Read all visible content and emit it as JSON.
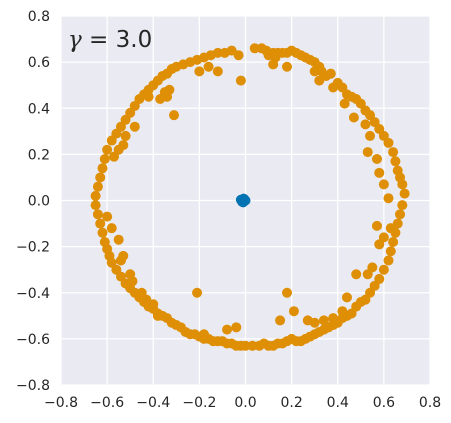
{
  "chart_data": {
    "type": "scatter",
    "title": "",
    "xlabel": "",
    "ylabel": "",
    "annotation": {
      "symbol": "γ",
      "equals": " = ",
      "value": "3.0"
    },
    "xlim": [
      -0.8,
      0.8
    ],
    "ylim": [
      -0.8,
      0.8
    ],
    "xticks": [
      "−0.8",
      "−0.6",
      "−0.4",
      "−0.2",
      "0.0",
      "0.2",
      "0.4",
      "0.6",
      "0.8"
    ],
    "yticks": [
      "0.8",
      "0.6",
      "0.4",
      "0.2",
      "0.0",
      "−0.2",
      "−0.4",
      "−0.6",
      "−0.8"
    ],
    "grid": true,
    "colors": {
      "background": "#eaeaf2",
      "grid": "#ffffff",
      "ring": "#de8f05",
      "center": "#0173b2"
    },
    "series": [
      {
        "color": "#de8f05",
        "points": [
          [
            0.04,
            0.66
          ],
          [
            0.07,
            0.66
          ],
          [
            0.09,
            0.65
          ],
          [
            0.12,
            0.64
          ],
          [
            0.14,
            0.64
          ],
          [
            0.16,
            0.64
          ],
          [
            0.18,
            0.64
          ],
          [
            0.2,
            0.65
          ],
          [
            0.22,
            0.64
          ],
          [
            0.24,
            0.63
          ],
          [
            0.1,
            0.63
          ],
          [
            0.13,
            0.62
          ],
          [
            0.26,
            0.62
          ],
          [
            0.28,
            0.61
          ],
          [
            0.3,
            0.6
          ],
          [
            0.32,
            0.58
          ],
          [
            0.33,
            0.56
          ],
          [
            0.35,
            0.54
          ],
          [
            0.37,
            0.55
          ],
          [
            0.4,
            0.51
          ],
          [
            0.42,
            0.49
          ],
          [
            0.44,
            0.46
          ],
          [
            0.46,
            0.45
          ],
          [
            0.48,
            0.44
          ],
          [
            0.5,
            0.42
          ],
          [
            0.52,
            0.39
          ],
          [
            0.54,
            0.37
          ],
          [
            0.56,
            0.34
          ],
          [
            0.58,
            0.31
          ],
          [
            0.6,
            0.28
          ],
          [
            0.62,
            0.25
          ],
          [
            0.64,
            0.21
          ],
          [
            0.65,
            0.17
          ],
          [
            0.66,
            0.13
          ],
          [
            0.67,
            0.1
          ],
          [
            0.68,
            0.07
          ],
          [
            0.69,
            0.03
          ],
          [
            0.68,
            -0.02
          ],
          [
            0.67,
            -0.06
          ],
          [
            0.66,
            -0.1
          ],
          [
            0.65,
            -0.14
          ],
          [
            0.64,
            -0.18
          ],
          [
            0.63,
            -0.22
          ],
          [
            0.62,
            -0.26
          ],
          [
            0.6,
            -0.3
          ],
          [
            0.58,
            -0.34
          ],
          [
            0.56,
            -0.37
          ],
          [
            0.54,
            -0.4
          ],
          [
            0.52,
            -0.43
          ],
          [
            0.5,
            -0.44
          ],
          [
            0.48,
            -0.46
          ],
          [
            0.46,
            -0.49
          ],
          [
            0.44,
            -0.5
          ],
          [
            0.42,
            -0.51
          ],
          [
            0.4,
            -0.53
          ],
          [
            0.38,
            -0.54
          ],
          [
            0.36,
            -0.55
          ],
          [
            0.34,
            -0.56
          ],
          [
            0.32,
            -0.57
          ],
          [
            0.3,
            -0.58
          ],
          [
            0.28,
            -0.59
          ],
          [
            0.26,
            -0.6
          ],
          [
            0.24,
            -0.61
          ],
          [
            0.22,
            -0.61
          ],
          [
            0.2,
            -0.6
          ],
          [
            0.18,
            -0.61
          ],
          [
            0.16,
            -0.62
          ],
          [
            0.14,
            -0.62
          ],
          [
            0.12,
            -0.63
          ],
          [
            0.1,
            -0.63
          ],
          [
            0.08,
            -0.62
          ],
          [
            0.06,
            -0.63
          ],
          [
            0.03,
            -0.63
          ],
          [
            0.0,
            -0.63
          ],
          [
            -0.02,
            -0.63
          ],
          [
            -0.04,
            -0.63
          ],
          [
            -0.06,
            -0.62
          ],
          [
            -0.08,
            -0.62
          ],
          [
            -0.1,
            -0.61
          ],
          [
            -0.12,
            -0.61
          ],
          [
            -0.14,
            -0.61
          ],
          [
            -0.16,
            -0.6
          ],
          [
            -0.18,
            -0.6
          ],
          [
            -0.2,
            -0.59
          ],
          [
            -0.22,
            -0.58
          ],
          [
            -0.24,
            -0.58
          ],
          [
            -0.26,
            -0.57
          ],
          [
            -0.28,
            -0.55
          ],
          [
            -0.3,
            -0.54
          ],
          [
            -0.32,
            -0.53
          ],
          [
            -0.34,
            -0.51
          ],
          [
            -0.36,
            -0.5
          ],
          [
            -0.38,
            -0.49
          ],
          [
            -0.4,
            -0.47
          ],
          [
            -0.42,
            -0.46
          ],
          [
            -0.44,
            -0.44
          ],
          [
            -0.46,
            -0.42
          ],
          [
            -0.48,
            -0.4
          ],
          [
            -0.5,
            -0.38
          ],
          [
            -0.52,
            -0.36
          ],
          [
            -0.54,
            -0.33
          ],
          [
            -0.56,
            -0.3
          ],
          [
            -0.58,
            -0.27
          ],
          [
            -0.59,
            -0.24
          ],
          [
            -0.6,
            -0.21
          ],
          [
            -0.61,
            -0.18
          ],
          [
            -0.62,
            -0.14
          ],
          [
            -0.63,
            -0.1
          ],
          [
            -0.64,
            -0.06
          ],
          [
            -0.65,
            -0.02
          ],
          [
            -0.65,
            0.02
          ],
          [
            -0.64,
            0.06
          ],
          [
            -0.63,
            0.1
          ],
          [
            -0.62,
            0.14
          ],
          [
            -0.61,
            0.18
          ],
          [
            -0.6,
            0.22
          ],
          [
            -0.58,
            0.26
          ],
          [
            -0.56,
            0.29
          ],
          [
            -0.54,
            0.32
          ],
          [
            -0.52,
            0.35
          ],
          [
            -0.5,
            0.38
          ],
          [
            -0.48,
            0.41
          ],
          [
            -0.46,
            0.44
          ],
          [
            -0.44,
            0.46
          ],
          [
            -0.42,
            0.48
          ],
          [
            -0.4,
            0.5
          ],
          [
            -0.38,
            0.52
          ],
          [
            -0.36,
            0.54
          ],
          [
            -0.34,
            0.55
          ],
          [
            -0.32,
            0.57
          ],
          [
            -0.3,
            0.58
          ],
          [
            -0.27,
            0.59
          ],
          [
            -0.24,
            0.6
          ],
          [
            -0.21,
            0.61
          ],
          [
            -0.18,
            0.62
          ],
          [
            -0.15,
            0.63
          ],
          [
            -0.12,
            0.64
          ],
          [
            -0.09,
            0.64
          ],
          [
            -0.06,
            0.65
          ],
          [
            -0.03,
            0.63
          ],
          [
            -0.12,
            0.56
          ],
          [
            -0.16,
            0.58
          ],
          [
            -0.2,
            0.56
          ],
          [
            -0.02,
            0.52
          ],
          [
            -0.33,
            0.48
          ],
          [
            -0.35,
            0.47
          ],
          [
            -0.34,
            0.45
          ],
          [
            -0.37,
            0.44
          ],
          [
            -0.42,
            0.45
          ],
          [
            -0.48,
            0.32
          ],
          [
            -0.52,
            0.28
          ],
          [
            -0.55,
            0.22
          ],
          [
            -0.57,
            0.19
          ],
          [
            -0.53,
            0.24
          ],
          [
            -0.31,
            0.37
          ],
          [
            -0.6,
            -0.07
          ],
          [
            -0.58,
            -0.12
          ],
          [
            -0.55,
            -0.17
          ],
          [
            -0.53,
            -0.24
          ],
          [
            -0.54,
            -0.26
          ],
          [
            -0.5,
            -0.32
          ],
          [
            -0.49,
            -0.35
          ],
          [
            -0.45,
            -0.4
          ],
          [
            -0.43,
            -0.43
          ],
          [
            -0.4,
            -0.45
          ],
          [
            -0.38,
            -0.5
          ],
          [
            -0.21,
            -0.4
          ],
          [
            -0.18,
            -0.58
          ],
          [
            -0.04,
            -0.55
          ],
          [
            -0.08,
            -0.56
          ],
          [
            0.18,
            -0.4
          ],
          [
            0.15,
            -0.52
          ],
          [
            0.21,
            -0.48
          ],
          [
            0.27,
            -0.52
          ],
          [
            0.3,
            -0.53
          ],
          [
            0.34,
            -0.52
          ],
          [
            0.38,
            -0.51
          ],
          [
            0.42,
            -0.48
          ],
          [
            0.44,
            -0.42
          ],
          [
            0.48,
            -0.32
          ],
          [
            0.53,
            -0.32
          ],
          [
            0.55,
            -0.29
          ],
          [
            0.58,
            -0.19
          ],
          [
            0.6,
            -0.16
          ],
          [
            0.63,
            -0.12
          ],
          [
            0.57,
            -0.11
          ],
          [
            0.62,
            0.01
          ],
          [
            0.6,
            0.07
          ],
          [
            0.58,
            0.12
          ],
          [
            0.57,
            0.18
          ],
          [
            0.53,
            0.21
          ],
          [
            0.54,
            0.28
          ],
          [
            0.52,
            0.33
          ],
          [
            0.47,
            0.36
          ],
          [
            0.43,
            0.42
          ],
          [
            0.38,
            0.49
          ],
          [
            0.32,
            0.52
          ],
          [
            0.3,
            0.56
          ],
          [
            0.18,
            0.58
          ],
          [
            0.12,
            0.59
          ]
        ]
      },
      {
        "color": "#0173b2",
        "points": [
          [
            -0.01,
            0.0
          ],
          [
            -0.005,
            0.005
          ],
          [
            -0.015,
            -0.005
          ],
          [
            -0.01,
            -0.008
          ],
          [
            0.0,
            0.0
          ],
          [
            -0.02,
            0.003
          ],
          [
            -0.008,
            0.008
          ]
        ]
      }
    ]
  }
}
